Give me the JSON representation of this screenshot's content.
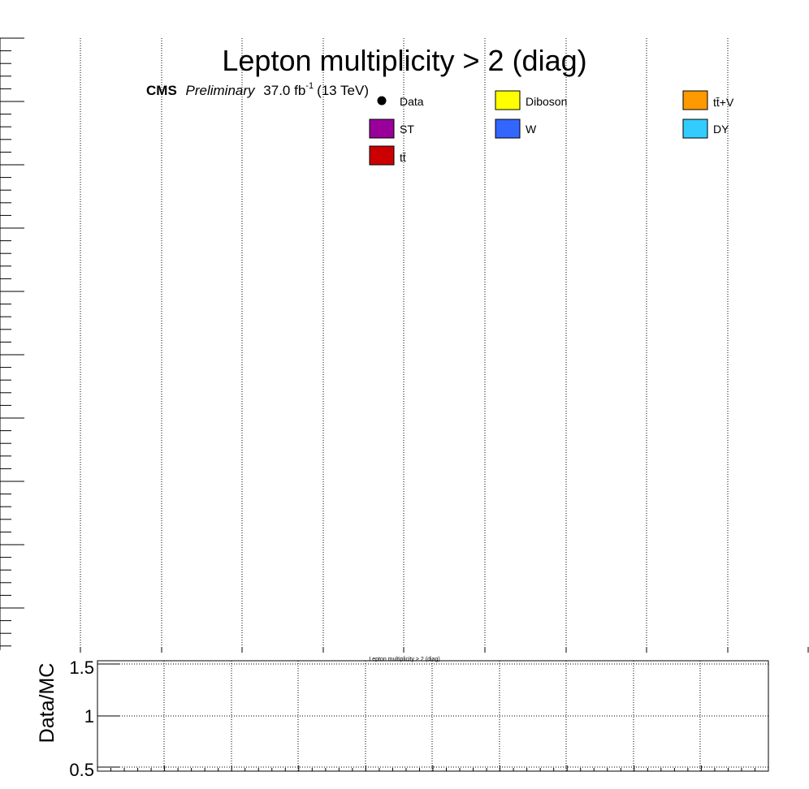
{
  "chart_data": [
    {
      "type": "bar",
      "title": "Lepton multiplicity > 2 (diag)",
      "cms_label": {
        "experiment": "CMS",
        "status": "Preliminary",
        "lumi": "37.0 fb",
        "lumi_exp": "-1",
        "energy": "(13 TeV)"
      },
      "grid": true,
      "stacked": true,
      "legend_position": "top",
      "legend": [
        {
          "name": "Data",
          "kind": "marker",
          "color": "#000000"
        },
        {
          "name": "Diboson",
          "kind": "box",
          "color": "#ffff00"
        },
        {
          "name": "tt̄+V",
          "kind": "box",
          "color": "#ff9900"
        },
        {
          "name": "ST",
          "kind": "box",
          "color": "#990099"
        },
        {
          "name": "W",
          "kind": "box",
          "color": "#3366ff"
        },
        {
          "name": "DY",
          "kind": "box",
          "color": "#33ccff"
        },
        {
          "name": "tt̄",
          "kind": "box",
          "color": "#cc0000"
        }
      ],
      "series": []
    },
    {
      "type": "scatter",
      "title": "Lepton multiplicity > 2 (diag)",
      "ylabel": "Data/MC",
      "ylim": [
        0.5,
        1.5
      ],
      "yticks": [
        "1.5",
        "1",
        "0.5"
      ],
      "grid": true,
      "series": []
    }
  ]
}
